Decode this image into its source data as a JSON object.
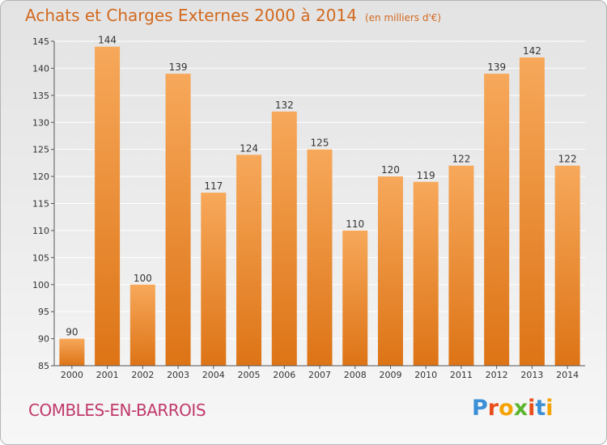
{
  "header": {
    "title": "Achats et Charges Externes 2000 à 2014",
    "unit": "(en milliers d'€)"
  },
  "footer": {
    "commune": "COMBLES-EN-BARROIS",
    "logo_letters": [
      "P",
      "r",
      "o",
      "x",
      "i",
      "t",
      "i"
    ]
  },
  "colors": {
    "title": "#d2691e",
    "commune": "#c0396b",
    "bar_light": "#f7a85a",
    "bar_dark": "#dd7416",
    "logo": [
      "#3a8fd6",
      "#e94e1b",
      "#f5a300",
      "#5cb531",
      "#e94e1b",
      "#3a8fd6",
      "#f5a300"
    ]
  },
  "chart_data": {
    "type": "bar",
    "title": "Achats et Charges Externes 2000 à 2014",
    "subtitle": "(en milliers d'€)",
    "categories": [
      "2000",
      "2001",
      "2002",
      "2003",
      "2004",
      "2005",
      "2006",
      "2007",
      "2008",
      "2009",
      "2010",
      "2011",
      "2012",
      "2013",
      "2014"
    ],
    "values": [
      90,
      144,
      100,
      139,
      117,
      124,
      132,
      125,
      110,
      120,
      119,
      122,
      139,
      142,
      122
    ],
    "ylim": [
      85,
      145
    ],
    "yticks": [
      85,
      90,
      95,
      100,
      105,
      110,
      115,
      120,
      125,
      130,
      135,
      140,
      145
    ],
    "grid": true,
    "data_labels": true
  }
}
